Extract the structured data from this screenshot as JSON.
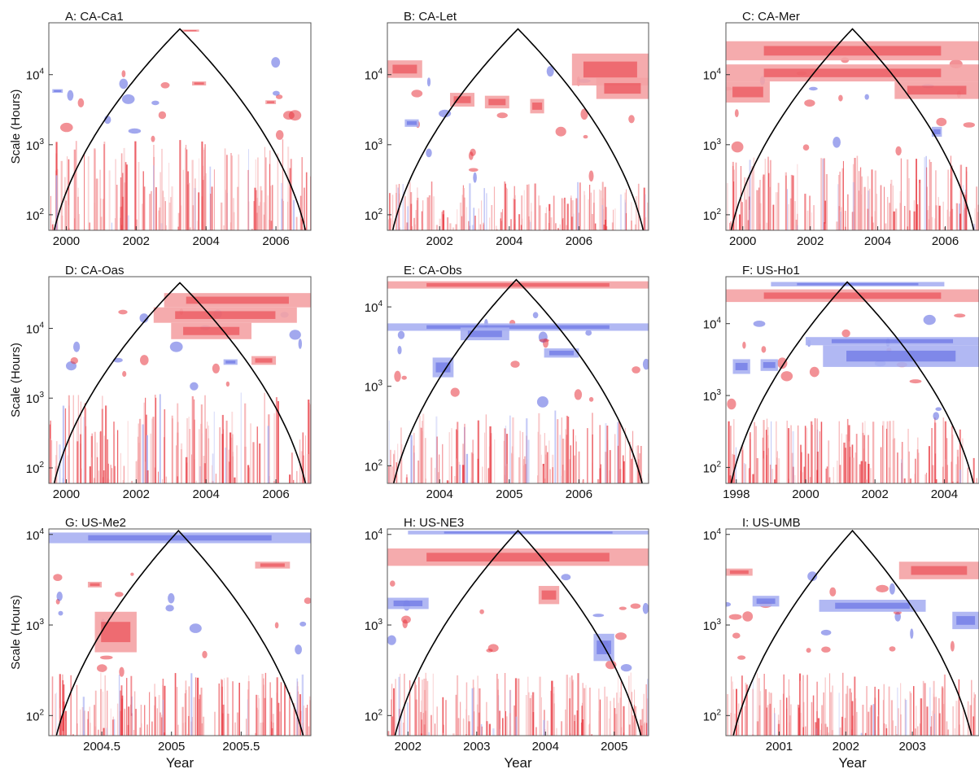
{
  "chart_data": [
    {
      "type": "heatmap",
      "panel": "A",
      "title": "A: CA-Ca1",
      "ylabel": "Scale (Hours)",
      "xlabel": "",
      "x_range": [
        1999.5,
        2007.0
      ],
      "x_ticks": [
        2000,
        2002,
        2004,
        2006
      ],
      "x_tick_labels": [
        "2000",
        "2002",
        "2004",
        "2006"
      ],
      "y_scale": "log",
      "y_range": [
        60,
        55000
      ],
      "y_ticks": [
        100,
        1000,
        10000
      ],
      "cone_peak": {
        "x": 2003.25,
        "y": 45000
      },
      "bands": [
        {
          "color": "red",
          "x0": 2003.3,
          "x1": 2003.8,
          "y0": 41000,
          "y1": 44000
        },
        {
          "color": "blue",
          "x0": 1999.6,
          "x1": 1999.9,
          "y0": 5500,
          "y1": 6200
        },
        {
          "color": "red",
          "x0": 2003.6,
          "x1": 2004.0,
          "y0": 7000,
          "y1": 8000
        },
        {
          "color": "red",
          "x0": 2005.7,
          "x1": 2006.0,
          "y0": 3800,
          "y1": 4300
        }
      ],
      "dense_color": "red",
      "dense_top": 1200
    },
    {
      "type": "heatmap",
      "panel": "B",
      "title": "B: CA-Let",
      "ylabel": "",
      "xlabel": "",
      "x_range": [
        2000.5,
        2008.0
      ],
      "x_ticks": [
        2002,
        2004,
        2006
      ],
      "x_tick_labels": [
        "2002",
        "2004",
        "2006"
      ],
      "y_scale": "log",
      "y_range": [
        60,
        55000
      ],
      "y_ticks": [
        100,
        1000,
        10000
      ],
      "cone_peak": {
        "x": 2004.25,
        "y": 45000
      },
      "bands": [
        {
          "color": "red",
          "x0": 2000.5,
          "x1": 2001.5,
          "y0": 9000,
          "y1": 16000
        },
        {
          "color": "red",
          "x0": 2005.8,
          "x1": 2008.0,
          "y0": 7000,
          "y1": 20000
        },
        {
          "color": "red",
          "x0": 2006.5,
          "x1": 2008.0,
          "y0": 4500,
          "y1": 9000
        },
        {
          "color": "red",
          "x0": 2002.3,
          "x1": 2003.0,
          "y0": 3500,
          "y1": 5500
        },
        {
          "color": "red",
          "x0": 2003.3,
          "x1": 2004.0,
          "y0": 3300,
          "y1": 5000
        },
        {
          "color": "red",
          "x0": 2004.6,
          "x1": 2005.0,
          "y0": 2800,
          "y1": 4500
        },
        {
          "color": "blue",
          "x0": 2001.0,
          "x1": 2001.4,
          "y0": 1800,
          "y1": 2300
        }
      ],
      "dense_color": "red",
      "dense_top": 300
    },
    {
      "type": "heatmap",
      "panel": "C",
      "title": "C: CA-Mer",
      "ylabel": "",
      "xlabel": "",
      "x_range": [
        1999.5,
        2007.0
      ],
      "x_ticks": [
        2000,
        2002,
        2004,
        2006
      ],
      "x_tick_labels": [
        "2000",
        "2002",
        "2004",
        "2006"
      ],
      "y_scale": "log",
      "y_range": [
        60,
        55000
      ],
      "y_ticks": [
        100,
        1000,
        10000
      ],
      "cone_peak": {
        "x": 2003.25,
        "y": 45000
      },
      "bands": [
        {
          "color": "red",
          "x0": 1999.5,
          "x1": 2007.0,
          "y0": 16000,
          "y1": 30000
        },
        {
          "color": "red",
          "x0": 1999.5,
          "x1": 2007.0,
          "y0": 8000,
          "y1": 14000
        },
        {
          "color": "red",
          "x0": 2004.5,
          "x1": 2007.0,
          "y0": 4500,
          "y1": 8000
        },
        {
          "color": "red",
          "x0": 1999.5,
          "x1": 2000.8,
          "y0": 4000,
          "y1": 8000
        },
        {
          "color": "blue",
          "x0": 2005.6,
          "x1": 2005.9,
          "y0": 1300,
          "y1": 1800
        }
      ],
      "dense_color": "red",
      "dense_top": 700
    },
    {
      "type": "heatmap",
      "panel": "D",
      "title": "D: CA-Oas",
      "ylabel": "Scale (Hours)",
      "xlabel": "",
      "x_range": [
        1999.5,
        2007.0
      ],
      "x_ticks": [
        2000,
        2002,
        2004,
        2006
      ],
      "x_tick_labels": [
        "2000",
        "2002",
        "2004",
        "2006"
      ],
      "y_scale": "log",
      "y_range": [
        60,
        55000
      ],
      "y_ticks": [
        100,
        1000,
        10000
      ],
      "cone_peak": {
        "x": 2003.25,
        "y": 45000
      },
      "bands": [
        {
          "color": "red",
          "x0": 2002.8,
          "x1": 2007.0,
          "y0": 20000,
          "y1": 32000
        },
        {
          "color": "red",
          "x0": 2002.5,
          "x1": 2006.6,
          "y0": 12000,
          "y1": 20000
        },
        {
          "color": "red",
          "x0": 2003.0,
          "x1": 2005.3,
          "y0": 7000,
          "y1": 12000
        },
        {
          "color": "red",
          "x0": 2005.3,
          "x1": 2006.0,
          "y0": 3000,
          "y1": 4000
        },
        {
          "color": "blue",
          "x0": 2004.5,
          "x1": 2004.9,
          "y0": 3000,
          "y1": 3600
        }
      ],
      "dense_color": "red",
      "dense_top": 1200
    },
    {
      "type": "heatmap",
      "panel": "E",
      "title": "E: CA-Obs",
      "ylabel": "",
      "xlabel": "",
      "x_range": [
        2003.25,
        2007.0
      ],
      "x_ticks": [
        2004,
        2005,
        2006
      ],
      "x_tick_labels": [
        "2004",
        "2005",
        "2006"
      ],
      "y_scale": "log",
      "y_range": [
        60,
        24000
      ],
      "y_ticks": [
        100,
        1000,
        10000
      ],
      "cone_peak": {
        "x": 2005.1,
        "y": 22000
      },
      "bands": [
        {
          "color": "red",
          "x0": 2003.25,
          "x1": 2007.0,
          "y0": 17000,
          "y1": 21000
        },
        {
          "color": "blue",
          "x0": 2003.25,
          "x1": 2007.0,
          "y0": 5000,
          "y1": 6200
        },
        {
          "color": "blue",
          "x0": 2004.3,
          "x1": 2005.0,
          "y0": 3800,
          "y1": 5500
        },
        {
          "color": "blue",
          "x0": 2005.5,
          "x1": 2006.0,
          "y0": 2300,
          "y1": 3000
        },
        {
          "color": "blue",
          "x0": 2003.9,
          "x1": 2004.2,
          "y0": 1300,
          "y1": 2300
        }
      ],
      "dense_color": "red",
      "dense_top": 500
    },
    {
      "type": "heatmap",
      "panel": "F",
      "title": "F: US-Ho1",
      "ylabel": "",
      "xlabel": "",
      "x_range": [
        1997.7,
        2005.0
      ],
      "x_ticks": [
        1998,
        2000,
        2002,
        2004
      ],
      "x_tick_labels": [
        "1998",
        "2000",
        "2002",
        "2004"
      ],
      "y_scale": "log",
      "y_range": [
        60,
        45000
      ],
      "y_ticks": [
        100,
        1000,
        10000
      ],
      "cone_peak": {
        "x": 2001.2,
        "y": 38000
      },
      "bands": [
        {
          "color": "red",
          "x0": 1997.7,
          "x1": 2005.0,
          "y0": 20000,
          "y1": 30000
        },
        {
          "color": "blue",
          "x0": 1999.0,
          "x1": 2004.0,
          "y0": 33000,
          "y1": 38000
        },
        {
          "color": "blue",
          "x0": 2000.0,
          "x1": 2005.0,
          "y0": 5000,
          "y1": 6500
        },
        {
          "color": "blue",
          "x0": 2000.5,
          "x1": 2005.0,
          "y0": 2500,
          "y1": 5000
        },
        {
          "color": "blue",
          "x0": 1997.9,
          "x1": 1998.4,
          "y0": 2000,
          "y1": 3200
        },
        {
          "color": "blue",
          "x0": 1998.7,
          "x1": 1999.2,
          "y0": 2200,
          "y1": 3200
        }
      ],
      "dense_color": "red",
      "dense_top": 500
    },
    {
      "type": "heatmap",
      "panel": "G",
      "title": "G: US-Me2",
      "ylabel": "Scale (Hours)",
      "xlabel": "Year",
      "x_range": [
        2004.12,
        2006.0
      ],
      "x_ticks": [
        2004.5,
        2005,
        2005.5
      ],
      "x_tick_labels": [
        "2004.5",
        "2005",
        "2005.5"
      ],
      "y_scale": "log",
      "y_range": [
        60,
        11500
      ],
      "y_ticks": [
        100,
        1000,
        10000
      ],
      "cone_peak": {
        "x": 2005.05,
        "y": 11000
      },
      "bands": [
        {
          "color": "blue",
          "x0": 2004.12,
          "x1": 2006.0,
          "y0": 8000,
          "y1": 10500
        },
        {
          "color": "red",
          "x0": 2005.6,
          "x1": 2005.85,
          "y0": 4200,
          "y1": 5000
        },
        {
          "color": "red",
          "x0": 2004.4,
          "x1": 2004.5,
          "y0": 2600,
          "y1": 3000
        },
        {
          "color": "red",
          "x0": 2004.45,
          "x1": 2004.75,
          "y0": 500,
          "y1": 1400
        }
      ],
      "dense_color": "red",
      "dense_top": 300
    },
    {
      "type": "heatmap",
      "panel": "H",
      "title": "H: US-NE3",
      "ylabel": "",
      "xlabel": "Year",
      "x_range": [
        2001.7,
        2005.5
      ],
      "x_ticks": [
        2002,
        2003,
        2004,
        2005
      ],
      "x_tick_labels": [
        "2002",
        "2003",
        "2004",
        "2005"
      ],
      "y_scale": "log",
      "y_range": [
        60,
        11500
      ],
      "y_ticks": [
        100,
        1000,
        10000
      ],
      "cone_peak": {
        "x": 2003.6,
        "y": 11000
      },
      "bands": [
        {
          "color": "blue",
          "x0": 2002.0,
          "x1": 2005.5,
          "y0": 10000,
          "y1": 11000
        },
        {
          "color": "red",
          "x0": 2001.7,
          "x1": 2005.5,
          "y0": 4500,
          "y1": 7000
        },
        {
          "color": "red",
          "x0": 2003.9,
          "x1": 2004.2,
          "y0": 1700,
          "y1": 2700
        },
        {
          "color": "blue",
          "x0": 2001.7,
          "x1": 2002.3,
          "y0": 1500,
          "y1": 2000
        },
        {
          "color": "blue",
          "x0": 2004.7,
          "x1": 2005.0,
          "y0": 400,
          "y1": 800
        }
      ],
      "dense_color": "red",
      "dense_top": 300
    },
    {
      "type": "heatmap",
      "panel": "I",
      "title": "I: US-UMB",
      "ylabel": "",
      "xlabel": "Year",
      "x_range": [
        2000.2,
        2004.0
      ],
      "x_ticks": [
        2001,
        2002,
        2003
      ],
      "x_tick_labels": [
        "2001",
        "2002",
        "2003"
      ],
      "y_scale": "log",
      "y_range": [
        60,
        11500
      ],
      "y_ticks": [
        100,
        1000,
        10000
      ],
      "cone_peak": {
        "x": 2002.1,
        "y": 11000
      },
      "bands": [
        {
          "color": "red",
          "x0": 2002.8,
          "x1": 2004.0,
          "y0": 3200,
          "y1": 5000
        },
        {
          "color": "red",
          "x0": 2000.2,
          "x1": 2000.6,
          "y0": 3500,
          "y1": 4200
        },
        {
          "color": "blue",
          "x0": 2000.6,
          "x1": 2001.0,
          "y0": 1600,
          "y1": 2100
        },
        {
          "color": "blue",
          "x0": 2001.6,
          "x1": 2003.2,
          "y0": 1400,
          "y1": 1900
        },
        {
          "color": "blue",
          "x0": 2003.6,
          "x1": 2004.0,
          "y0": 900,
          "y1": 1400
        }
      ],
      "dense_color": "red",
      "dense_top": 300
    }
  ],
  "colors": {
    "positive": "#e8373f",
    "positive_light": "#f4a2a4",
    "negative": "#5560e0",
    "negative_light": "#a8b0f2",
    "cone": "#000000",
    "frame": "#555555"
  }
}
